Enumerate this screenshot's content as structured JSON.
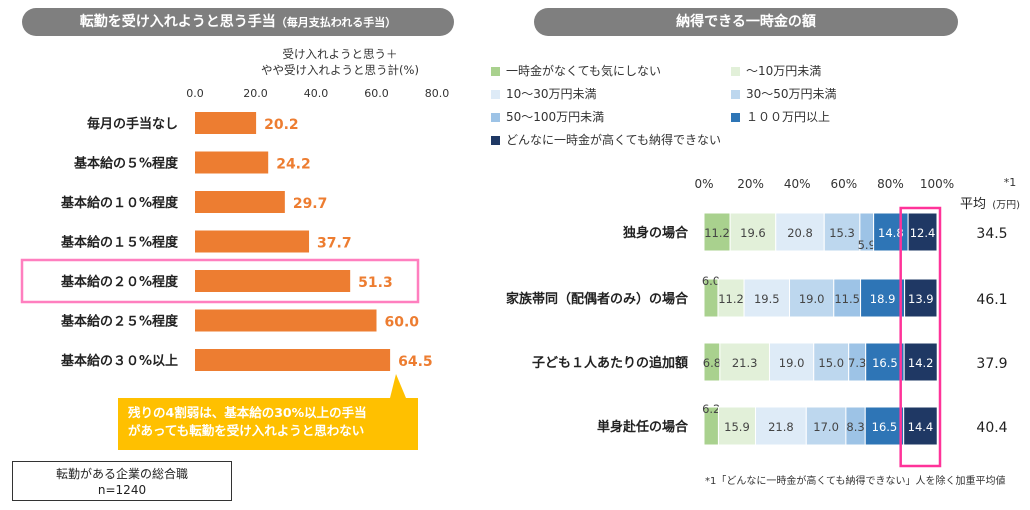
{
  "left": {
    "title_main": "転勤を受け入れようと思う手当",
    "title_sub": "（毎月支払われる手当）",
    "header_line1": "受け入れようと思う＋",
    "header_line2": "やや受け入れようと思う計(%)",
    "callout_line1": "残りの4割弱は、基本給の30%以上の手当",
    "callout_line2": "があっても転勤を受け入れようと思わない",
    "sample_line1": "転勤がある企業の総合職",
    "sample_line2": "n=1240"
  },
  "right": {
    "title": "納得できる一時金の額",
    "avg_label": "平均",
    "avg_unit": "(万円)",
    "avg_marker": "*1",
    "footnote": "*1「どんなに一時金が高くても納得できない」人を除く加重平均値",
    "legend": [
      {
        "label": "一時金がなくても気にしない",
        "color": "#a9d18e"
      },
      {
        "label": "～10万円未満",
        "color": "#e2f0d9"
      },
      {
        "label": "10～30万円未満",
        "color": "#deebf7"
      },
      {
        "label": "30～50万円未満",
        "color": "#bdd7ee"
      },
      {
        "label": "50～100万円未満",
        "color": "#9dc3e6"
      },
      {
        "label": "１００万円以上",
        "color": "#2e75b6"
      },
      {
        "label": "どんなに一時金が高くても納得できない",
        "color": "#1f3864"
      }
    ],
    "averages": [
      "34.5",
      "46.1",
      "37.9",
      "40.4"
    ]
  },
  "chart_data": [
    {
      "type": "bar",
      "orientation": "horizontal",
      "title": "転勤を受け入れようと思う手当（毎月支払われる手当）",
      "xlabel": "受け入れようと思う＋やや受け入れようと思う計(%)",
      "categories": [
        "毎月の手当なし",
        "基本給の５%程度",
        "基本給の１０%程度",
        "基本給の１５%程度",
        "基本給の２０%程度",
        "基本給の２５%程度",
        "基本給の３０%以上"
      ],
      "values": [
        20.2,
        24.2,
        29.7,
        37.7,
        51.3,
        60.0,
        64.5
      ],
      "value_labels": [
        "20.2",
        "24.2",
        "29.7",
        "37.7",
        "51.3",
        "60.0",
        "64.5"
      ],
      "xlim": [
        0,
        80
      ],
      "ticks": [
        "0.0",
        "20.0",
        "40.0",
        "60.0",
        "80.0"
      ],
      "highlight_category": "基本給の２０%程度",
      "bar_color": "#ed7d31",
      "grid": false
    },
    {
      "type": "bar",
      "orientation": "horizontal",
      "stacked": true,
      "title": "納得できる一時金の額",
      "categories": [
        "独身の場合",
        "家族帯同（配偶者のみ）の場合",
        "子ども１人あたりの追加額",
        "単身赴任の場合"
      ],
      "series": [
        {
          "name": "一時金がなくても気にしない",
          "values": [
            11.2,
            6.0,
            6.8,
            6.2
          ]
        },
        {
          "name": "～10万円未満",
          "values": [
            19.6,
            11.2,
            21.3,
            15.9
          ]
        },
        {
          "name": "10～30万円未満",
          "values": [
            20.8,
            19.5,
            19.0,
            21.8
          ]
        },
        {
          "name": "30～50万円未満",
          "values": [
            15.3,
            19.0,
            15.0,
            17.0
          ]
        },
        {
          "name": "50～100万円未満",
          "values": [
            5.9,
            11.5,
            7.3,
            8.3
          ]
        },
        {
          "name": "１００万円以上",
          "values": [
            14.8,
            18.9,
            16.5,
            16.5
          ]
        },
        {
          "name": "どんなに一時金が高くても納得できない",
          "values": [
            12.4,
            13.9,
            14.2,
            14.4
          ]
        }
      ],
      "ticks": [
        "0%",
        "20%",
        "40%",
        "60%",
        "80%",
        "100%"
      ],
      "xlim": [
        0,
        100
      ],
      "legend_position": "top",
      "highlight_series": "どんなに一時金が高くても納得できない"
    }
  ]
}
